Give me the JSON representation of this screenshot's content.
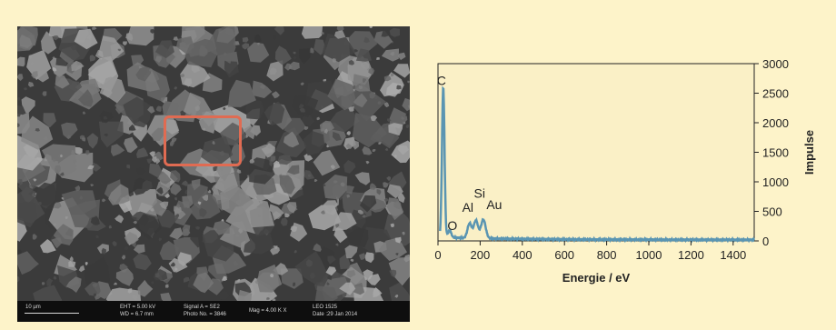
{
  "colors": {
    "background": "#fdf3c9",
    "plot_area": "#faf0c6",
    "spectrum": "#5a95b2",
    "highlight_box": "#e06b52",
    "frame_border": "#f2d98a"
  },
  "sem_image": {
    "scale_bar": "10 µm",
    "eht": "EHT =  5.00 kV",
    "wd": "WD =  6.7 mm",
    "signal": "Signal A = SE2",
    "photo_no": "Photo No. = 3846",
    "mag": "Mag =  4.00 K X",
    "instrument": "LEO 1525",
    "date": "Date :29 Jan 2014"
  },
  "chart_data": {
    "type": "line",
    "xlabel": "Energie / eV",
    "ylabel": "Impulse",
    "xlim": [
      0,
      1500
    ],
    "ylim": [
      0,
      3000
    ],
    "x_ticks": [
      0,
      200,
      400,
      600,
      800,
      1000,
      1200,
      1400
    ],
    "y_ticks": [
      0,
      500,
      1000,
      1500,
      2000,
      2500,
      3000
    ],
    "peaks": [
      {
        "label": "C",
        "x": 25,
        "y": 2550
      },
      {
        "label": "O",
        "x": 55,
        "y": 120
      },
      {
        "label": "Al",
        "x": 150,
        "y": 250
      },
      {
        "label": "Si",
        "x": 180,
        "y": 300
      },
      {
        "label": "Au",
        "x": 215,
        "y": 320
      }
    ],
    "grid": false
  }
}
